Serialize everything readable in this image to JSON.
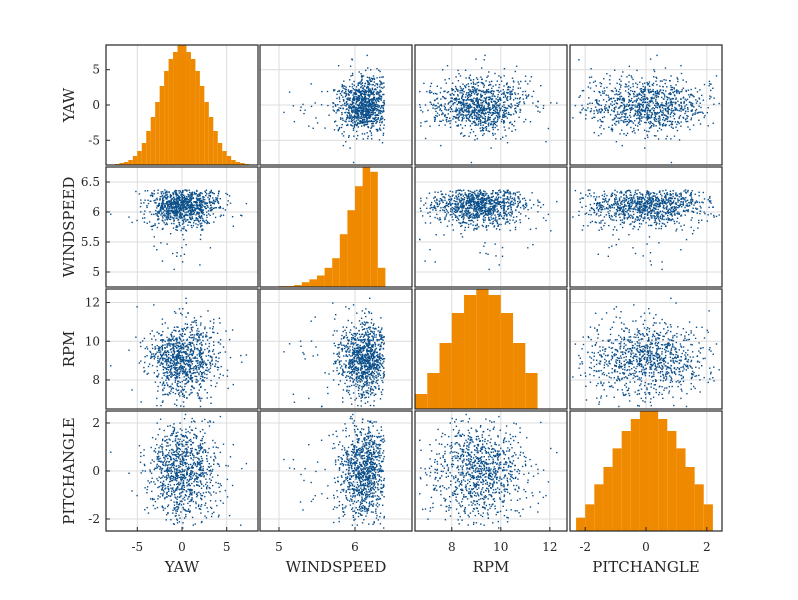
{
  "chart_data": {
    "type": "scatter",
    "kind": "scatter-matrix",
    "variables": [
      "YAW",
      "WINDSPEED",
      "RPM",
      "PITCHANGLE"
    ],
    "n_points": 1000,
    "grid": true,
    "colors": {
      "scatter": "#0b4f8a",
      "histogram": "#ef8a00",
      "grid": "#dcdcdc",
      "frame": "#262626"
    },
    "variable_stats": {
      "YAW": {
        "mean": 0,
        "std": 2.0,
        "distribution": "normal",
        "axis_range": [
          -8.5,
          8.5
        ],
        "ticks": [
          -5,
          0,
          5
        ],
        "tick_labels": [
          "-5",
          "0",
          "5"
        ]
      },
      "WINDSPEED": {
        "mean": 6.1,
        "std": 0.15,
        "distribution": "left-skewed",
        "axis_range": [
          4.75,
          6.75
        ],
        "ticks": [
          5,
          5.5,
          6,
          6.5
        ],
        "tick_labels": [
          "5",
          "5.5",
          "6",
          "6.5"
        ],
        "x_ticks": [
          5,
          6
        ],
        "x_tick_labels": [
          "5",
          "6"
        ]
      },
      "RPM": {
        "mean": 9.1,
        "std": 1.0,
        "distribution": "normal",
        "axis_range": [
          6.5,
          12.7
        ],
        "ticks": [
          8,
          10,
          12
        ],
        "tick_labels": [
          "8",
          "10",
          "12"
        ]
      },
      "PITCHANGLE": {
        "mean": 0,
        "std": 1.0,
        "distribution": "normal",
        "axis_range": [
          -2.5,
          2.5
        ],
        "ticks": [
          -2,
          0,
          2
        ],
        "tick_labels": [
          "-2",
          "0",
          "2"
        ]
      }
    },
    "diagonal_histograms": {
      "YAW": {
        "bin_edges": [
          -7.5,
          -7.0,
          -6.5,
          -6.0,
          -5.5,
          -5.0,
          -4.5,
          -4.0,
          -3.5,
          -3.0,
          -2.5,
          -2.0,
          -1.5,
          -1.0,
          -0.5,
          0.0,
          0.5,
          1.0,
          1.5,
          2.0,
          2.5,
          3.0,
          3.5,
          4.0,
          4.5,
          5.0,
          5.5,
          6.0,
          6.5,
          7.0,
          7.5
        ],
        "counts": [
          1,
          2,
          3,
          5,
          9,
          14,
          22,
          34,
          48,
          63,
          79,
          94,
          106,
          113,
          120,
          120,
          113,
          106,
          94,
          79,
          63,
          48,
          34,
          22,
          14,
          9,
          5,
          3,
          2,
          1
        ]
      },
      "WINDSPEED": {
        "bin_edges": [
          5.0,
          5.1,
          5.2,
          5.3,
          5.4,
          5.5,
          5.6,
          5.7,
          5.8,
          5.9,
          6.0,
          6.1,
          6.2,
          6.3,
          6.4
        ],
        "counts": [
          1,
          1,
          2,
          5,
          8,
          12,
          20,
          30,
          55,
          80,
          105,
          125,
          120,
          20
        ]
      },
      "RPM": {
        "bin_edges": [
          6.5,
          7.0,
          7.5,
          8.0,
          8.5,
          9.0,
          9.5,
          10.0,
          10.5,
          11.0,
          11.5
        ],
        "counts": [
          10,
          24,
          44,
          64,
          76,
          80,
          76,
          64,
          44,
          24
        ]
      },
      "PITCHANGLE": {
        "bin_edges": [
          -2.3,
          -2.0,
          -1.7,
          -1.4,
          -1.1,
          -0.8,
          -0.5,
          -0.2,
          0.1,
          0.4,
          0.7,
          1.0,
          1.3,
          1.6,
          1.9,
          2.2
        ],
        "counts": [
          10,
          20,
          35,
          48,
          62,
          75,
          84,
          90,
          90,
          84,
          75,
          62,
          48,
          35,
          20
        ]
      }
    }
  }
}
